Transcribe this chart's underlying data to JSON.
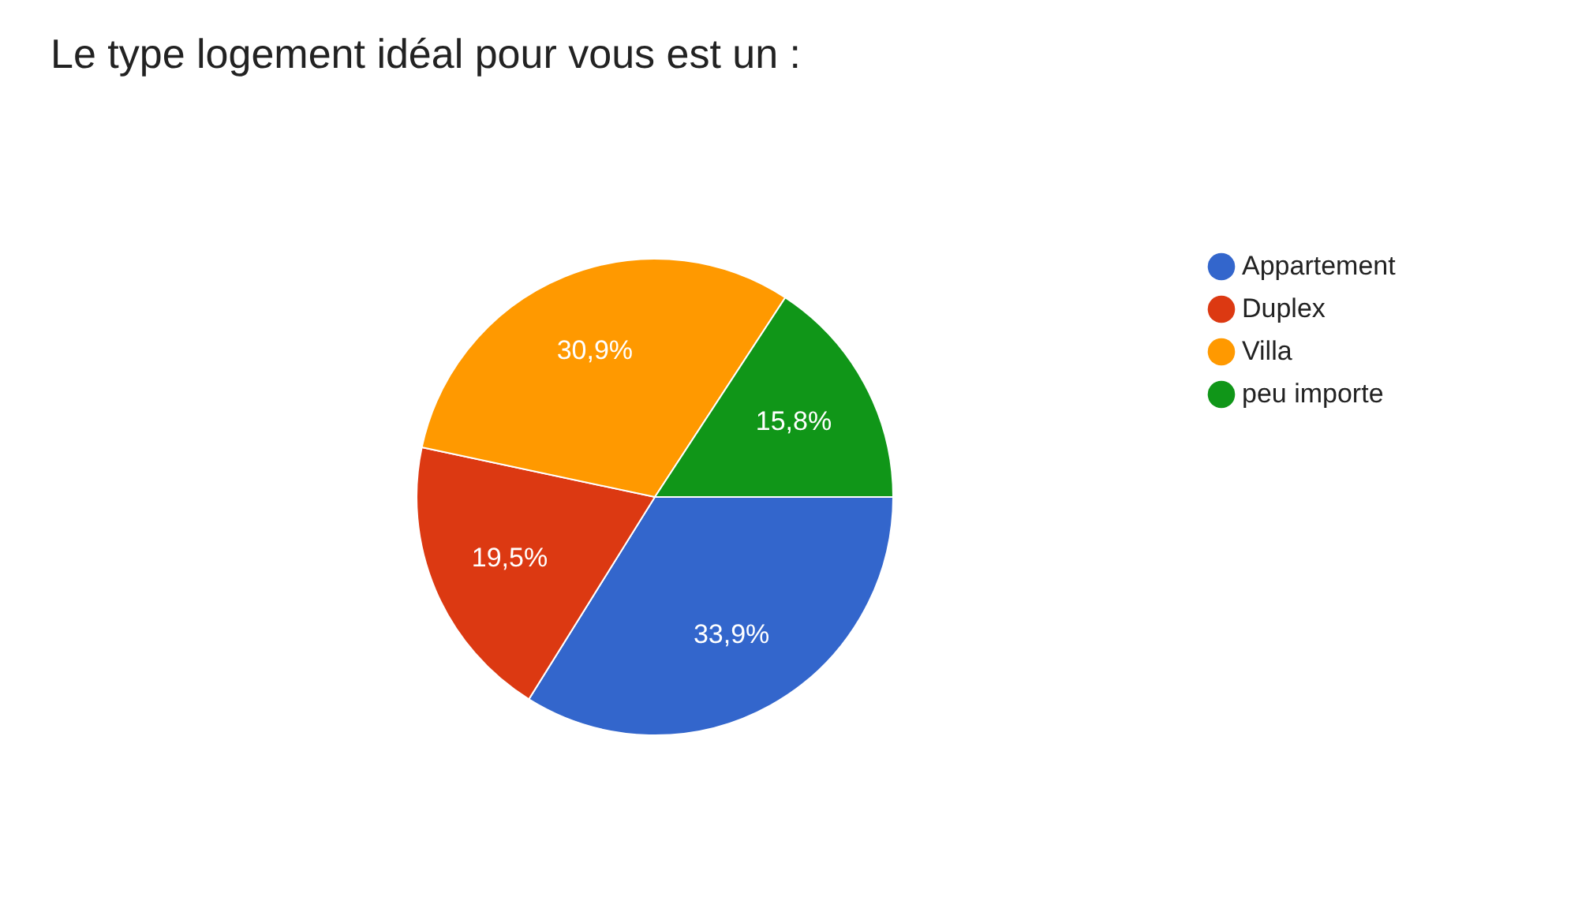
{
  "chart_data": {
    "type": "pie",
    "title": "Le type logement idéal pour vous est un :",
    "categories": [
      "Appartement",
      "Duplex",
      "Villa",
      "peu importe"
    ],
    "values": [
      33.9,
      19.5,
      30.9,
      15.8
    ],
    "colors": [
      "#3366cc",
      "#dc3912",
      "#ff9900",
      "#109618"
    ],
    "value_labels": [
      "33,9%",
      "19,5%",
      "30,9%",
      "15,8%"
    ],
    "legend": "right"
  }
}
